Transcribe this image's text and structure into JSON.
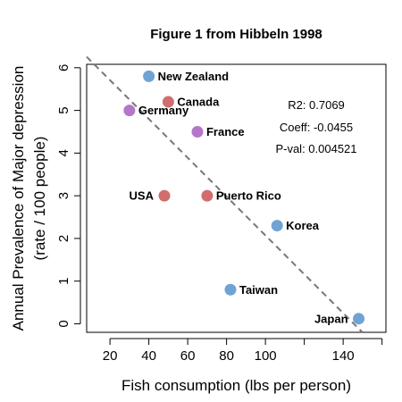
{
  "chart_data": {
    "type": "scatter",
    "title": "Figure 1 from Hibbeln 1998",
    "xlabel": "Fish consumption (lbs per person)",
    "ylabel_line1": "Annual Prevalence of Major depression",
    "ylabel_line2": "(rate / 100 people)",
    "xlim": [
      8,
      162
    ],
    "ylim": [
      -0.2,
      6.08
    ],
    "xticks": [
      20,
      40,
      60,
      80,
      100,
      140
    ],
    "yticks": [
      0,
      1,
      2,
      3,
      4,
      5,
      6
    ],
    "points": [
      {
        "label": "New Zealand",
        "x": 40,
        "y": 5.8,
        "color": "#6fa3d4"
      },
      {
        "label": "Canada",
        "x": 50,
        "y": 5.2,
        "color": "#d26d6d"
      },
      {
        "label": "Germany",
        "x": 30,
        "y": 5.0,
        "color": "#b576c8"
      },
      {
        "label": "France",
        "x": 65,
        "y": 4.5,
        "color": "#b576c8"
      },
      {
        "label": "USA",
        "x": 48,
        "y": 3.0,
        "color": "#d26d6d"
      },
      {
        "label": "Puerto Rico",
        "x": 70,
        "y": 3.0,
        "color": "#d26d6d"
      },
      {
        "label": "Korea",
        "x": 106,
        "y": 2.3,
        "color": "#6fa3d4"
      },
      {
        "label": "Taiwan",
        "x": 82,
        "y": 0.8,
        "color": "#6fa3d4"
      },
      {
        "label": "Japan",
        "x": 148,
        "y": 0.12,
        "color": "#6fa3d4"
      }
    ],
    "regression": {
      "intercept": 6.62,
      "slope": -0.0455
    },
    "stats": [
      "R2: 0.7069",
      "Coeff: -0.0455",
      "P-val: 0.004521"
    ]
  }
}
